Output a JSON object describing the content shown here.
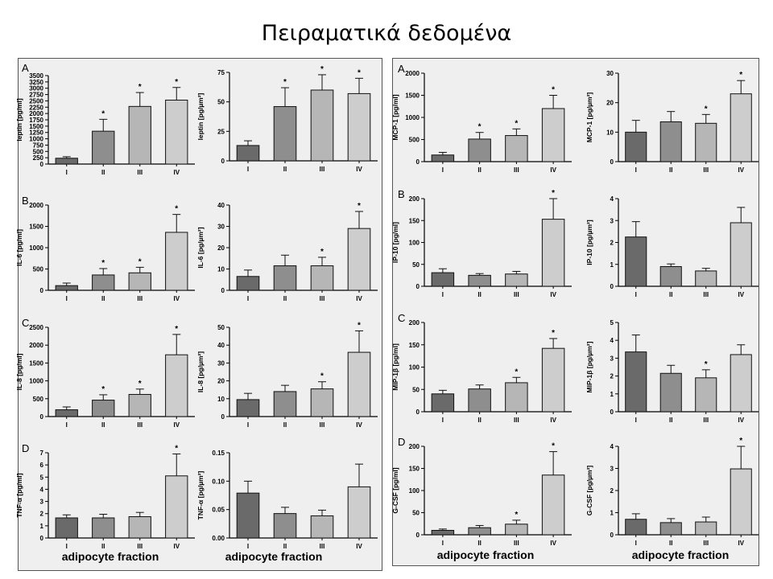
{
  "slide": {
    "title": "Πειραματικά δεδομένα"
  },
  "footer": {
    "left_label": "adipocyte fraction",
    "right_label": "adipocyte fraction"
  },
  "colors": {
    "bar_fills": [
      "#6a6a6a",
      "#8e8e8e",
      "#b6b6b6",
      "#cdcdcd"
    ],
    "axis": "#000000",
    "panel_bg": "#efefef"
  },
  "chart_data": [
    {
      "id": "leptin-pgml",
      "type": "bar",
      "panel_letter": "A",
      "ylabel": "leptin [pg/ml]",
      "categories": [
        "I",
        "II",
        "III",
        "IV"
      ],
      "values": [
        230,
        1300,
        2280,
        2530
      ],
      "errors": [
        60,
        470,
        550,
        500
      ],
      "significance": [
        "",
        "*",
        "*",
        "*"
      ],
      "yticks": [
        "0",
        "250",
        "500",
        "750",
        "1000",
        "1250",
        "1500",
        "1750",
        "2000",
        "2250",
        "2500",
        "2750",
        "3000",
        "3250",
        "3500"
      ],
      "ylim": [
        0,
        3500
      ]
    },
    {
      "id": "leptin-pgum2",
      "type": "bar",
      "panel_letter": "",
      "ylabel": "leptin [pg/µm²]",
      "categories": [
        "I",
        "II",
        "III",
        "IV"
      ],
      "values": [
        13,
        46,
        60,
        57
      ],
      "errors": [
        4,
        16,
        13,
        13
      ],
      "significance": [
        "",
        "*",
        "*",
        "*"
      ],
      "yticks": [
        "0",
        "25",
        "50",
        "75"
      ],
      "ylim": [
        0,
        75
      ]
    },
    {
      "id": "il6-pgml",
      "type": "bar",
      "panel_letter": "B",
      "ylabel": "IL-6 [pg/ml]",
      "categories": [
        "I",
        "II",
        "III",
        "IV"
      ],
      "values": [
        110,
        360,
        410,
        1360
      ],
      "errors": [
        60,
        150,
        130,
        420
      ],
      "significance": [
        "",
        "*",
        "*",
        "*"
      ],
      "yticks": [
        "0",
        "500",
        "1000",
        "1500",
        "2000"
      ],
      "ylim": [
        0,
        2000
      ]
    },
    {
      "id": "il6-pgum2",
      "type": "bar",
      "panel_letter": "",
      "ylabel": "IL-6 [pg/µm²]",
      "categories": [
        "I",
        "II",
        "III",
        "IV"
      ],
      "values": [
        6.5,
        11.5,
        11.5,
        29
      ],
      "errors": [
        3,
        5,
        4,
        8
      ],
      "significance": [
        "",
        "",
        "*",
        "*"
      ],
      "yticks": [
        "0",
        "10",
        "20",
        "30",
        "40"
      ],
      "ylim": [
        0,
        40
      ]
    },
    {
      "id": "il8-pgml",
      "type": "bar",
      "panel_letter": "C",
      "ylabel": "IL-8 [pg/ml]",
      "categories": [
        "I",
        "II",
        "III",
        "IV"
      ],
      "values": [
        190,
        460,
        620,
        1730
      ],
      "errors": [
        80,
        150,
        150,
        570
      ],
      "significance": [
        "",
        "*",
        "*",
        "*"
      ],
      "yticks": [
        "0",
        "500",
        "1000",
        "1500",
        "2000",
        "2500"
      ],
      "ylim": [
        0,
        2500
      ]
    },
    {
      "id": "il8-pgum2",
      "type": "bar",
      "panel_letter": "",
      "ylabel": "IL-8 [pg/µm²]",
      "categories": [
        "I",
        "II",
        "III",
        "IV"
      ],
      "values": [
        9.5,
        14,
        15.5,
        36
      ],
      "errors": [
        3.5,
        3.5,
        4,
        12
      ],
      "significance": [
        "",
        "",
        "*",
        "*"
      ],
      "yticks": [
        "0",
        "10",
        "20",
        "30",
        "40",
        "50"
      ],
      "ylim": [
        0,
        50
      ]
    },
    {
      "id": "tnfa-pgml",
      "type": "bar",
      "panel_letter": "D",
      "ylabel": "TNF-α [pg/ml]",
      "categories": [
        "I",
        "II",
        "III",
        "IV"
      ],
      "values": [
        1.65,
        1.65,
        1.75,
        5.1
      ],
      "errors": [
        0.25,
        0.3,
        0.35,
        1.8
      ],
      "significance": [
        "",
        "",
        "",
        "*"
      ],
      "yticks": [
        "0",
        "1",
        "2",
        "3",
        "4",
        "5",
        "6",
        "7"
      ],
      "ylim": [
        0,
        7
      ]
    },
    {
      "id": "tnfa-pgum2",
      "type": "bar",
      "panel_letter": "",
      "ylabel": "TNF-α [pg/µm²]",
      "categories": [
        "I",
        "II",
        "III",
        "IV"
      ],
      "values": [
        0.079,
        0.043,
        0.039,
        0.09
      ],
      "errors": [
        0.021,
        0.011,
        0.01,
        0.04
      ],
      "significance": [
        "",
        "",
        "",
        ""
      ],
      "yticks": [
        "0.00",
        "0.05",
        "0.10",
        "0.15"
      ],
      "ylim": [
        0,
        0.15
      ]
    },
    {
      "id": "mcp1-pgml",
      "type": "bar",
      "panel_letter": "A",
      "ylabel": "MCP-1 [pg/ml]",
      "categories": [
        "I",
        "II",
        "III",
        "IV"
      ],
      "values": [
        150,
        510,
        590,
        1200
      ],
      "errors": [
        60,
        150,
        150,
        300
      ],
      "significance": [
        "",
        "*",
        "*",
        "*"
      ],
      "yticks": [
        "0",
        "500",
        "1000",
        "1500",
        "2000"
      ],
      "ylim": [
        0,
        2000
      ]
    },
    {
      "id": "mcp1-pgum2",
      "type": "bar",
      "panel_letter": "",
      "ylabel": "MCP-1 [pg/µm²]",
      "categories": [
        "I",
        "II",
        "III",
        "IV"
      ],
      "values": [
        10,
        13.5,
        13,
        23
      ],
      "errors": [
        4,
        3.5,
        3,
        4.5
      ],
      "significance": [
        "",
        "",
        "*",
        "*"
      ],
      "yticks": [
        "0",
        "10",
        "20",
        "30"
      ],
      "ylim": [
        0,
        30
      ]
    },
    {
      "id": "ip10-pgml",
      "type": "bar",
      "panel_letter": "B",
      "ylabel": "IP-10 [pg/ml]",
      "categories": [
        "I",
        "II",
        "III",
        "IV"
      ],
      "values": [
        31,
        25,
        28,
        153
      ],
      "errors": [
        9,
        4,
        6,
        47
      ],
      "significance": [
        "",
        "",
        "",
        "*"
      ],
      "yticks": [
        "0",
        "50",
        "100",
        "150",
        "200"
      ],
      "ylim": [
        0,
        200
      ]
    },
    {
      "id": "ip10-pgum2",
      "type": "bar",
      "panel_letter": "",
      "ylabel": "IP-10 [pg/µm²]",
      "categories": [
        "I",
        "II",
        "III",
        "IV"
      ],
      "values": [
        2.25,
        0.9,
        0.7,
        2.9
      ],
      "errors": [
        0.7,
        0.12,
        0.12,
        0.7
      ],
      "significance": [
        "",
        "",
        "",
        ""
      ],
      "yticks": [
        "0",
        "1",
        "2",
        "3",
        "4"
      ],
      "ylim": [
        0,
        4
      ]
    },
    {
      "id": "mip1b-pgml",
      "type": "bar",
      "panel_letter": "C",
      "ylabel": "MIP-1β [pg/ml]",
      "categories": [
        "I",
        "II",
        "III",
        "IV"
      ],
      "values": [
        40,
        51,
        65,
        142
      ],
      "errors": [
        8,
        9,
        12,
        22
      ],
      "significance": [
        "",
        "",
        "*",
        "*"
      ],
      "yticks": [
        "0",
        "50",
        "100",
        "150",
        "200"
      ],
      "ylim": [
        0,
        200
      ]
    },
    {
      "id": "mip1b-pgum2",
      "type": "bar",
      "panel_letter": "",
      "ylabel": "MIP-1β [pg/µm²]",
      "categories": [
        "I",
        "II",
        "III",
        "IV"
      ],
      "values": [
        3.35,
        2.15,
        1.9,
        3.2
      ],
      "errors": [
        0.95,
        0.45,
        0.45,
        0.55
      ],
      "significance": [
        "",
        "",
        "*",
        ""
      ],
      "yticks": [
        "0",
        "1",
        "2",
        "3",
        "4",
        "5"
      ],
      "ylim": [
        0,
        5
      ]
    },
    {
      "id": "gcsf-pgml",
      "type": "bar",
      "panel_letter": "D",
      "ylabel": "G-CSF [pg/ml]",
      "categories": [
        "I",
        "II",
        "III",
        "IV"
      ],
      "values": [
        10,
        16,
        24,
        135
      ],
      "errors": [
        3,
        5,
        9,
        53
      ],
      "significance": [
        "",
        "",
        "*",
        "*"
      ],
      "yticks": [
        "0",
        "50",
        "100",
        "150",
        "200"
      ],
      "ylim": [
        0,
        200
      ]
    },
    {
      "id": "gcsf-pgum2",
      "type": "bar",
      "panel_letter": "",
      "ylabel": "G-CSF [pg/µm²]",
      "categories": [
        "I",
        "II",
        "III",
        "IV"
      ],
      "values": [
        0.7,
        0.55,
        0.58,
        2.98
      ],
      "errors": [
        0.25,
        0.18,
        0.22,
        1.02
      ],
      "significance": [
        "",
        "",
        "",
        "*"
      ],
      "yticks": [
        "0",
        "1",
        "2",
        "3",
        "4"
      ],
      "ylim": [
        0,
        4
      ]
    }
  ]
}
